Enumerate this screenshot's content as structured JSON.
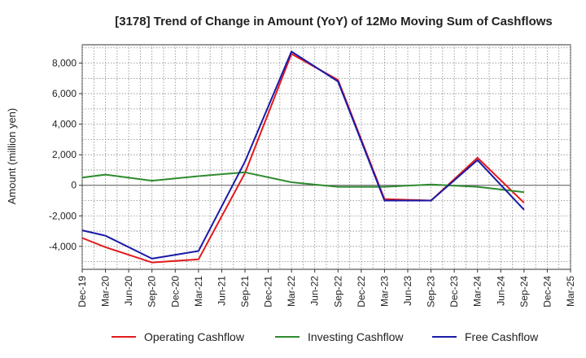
{
  "chart_data": {
    "type": "line",
    "title": "[3178]  Trend of Change in Amount (YoY) of 12Mo Moving Sum of Cashflows",
    "xlabel": "",
    "ylabel": "Amount (million yen)",
    "ylim": [
      -5500,
      9200
    ],
    "yticks": [
      -4000,
      -2000,
      0,
      2000,
      4000,
      6000,
      8000
    ],
    "ytick_labels": [
      "-4,000",
      "-2,000",
      "0",
      "2,000",
      "4,000",
      "6,000",
      "8,000"
    ],
    "categories": [
      "Dec-19",
      "Mar-20",
      "Jun-20",
      "Sep-20",
      "Dec-20",
      "Mar-21",
      "Jun-21",
      "Sep-21",
      "Dec-21",
      "Mar-22",
      "Jun-22",
      "Sep-22",
      "Dec-22",
      "Mar-23",
      "Jun-23",
      "Sep-23",
      "Dec-23",
      "Mar-24",
      "Jun-24",
      "Sep-24",
      "Dec-24",
      "Mar-25"
    ],
    "grid": true,
    "legend_position": "bottom",
    "series": [
      {
        "name": "Operating Cashflow",
        "color": "#e31a1c",
        "values": [
          -3450,
          -4050,
          null,
          -5050,
          null,
          -4850,
          null,
          800,
          null,
          8600,
          null,
          6900,
          null,
          -900,
          null,
          -1000,
          null,
          1800,
          null,
          -1150,
          null,
          null
        ]
      },
      {
        "name": "Investing Cashflow",
        "color": "#2e8b2e",
        "values": [
          500,
          700,
          null,
          300,
          null,
          600,
          null,
          850,
          null,
          200,
          null,
          -100,
          null,
          -100,
          null,
          50,
          null,
          -100,
          null,
          -450,
          null,
          null
        ]
      },
      {
        "name": "Free Cashflow",
        "color": "#1a1aa8",
        "values": [
          -2950,
          -3300,
          null,
          -4800,
          null,
          -4300,
          null,
          1550,
          null,
          8750,
          null,
          6800,
          null,
          -1000,
          null,
          -1000,
          null,
          1650,
          null,
          -1600,
          null,
          null
        ]
      }
    ]
  }
}
